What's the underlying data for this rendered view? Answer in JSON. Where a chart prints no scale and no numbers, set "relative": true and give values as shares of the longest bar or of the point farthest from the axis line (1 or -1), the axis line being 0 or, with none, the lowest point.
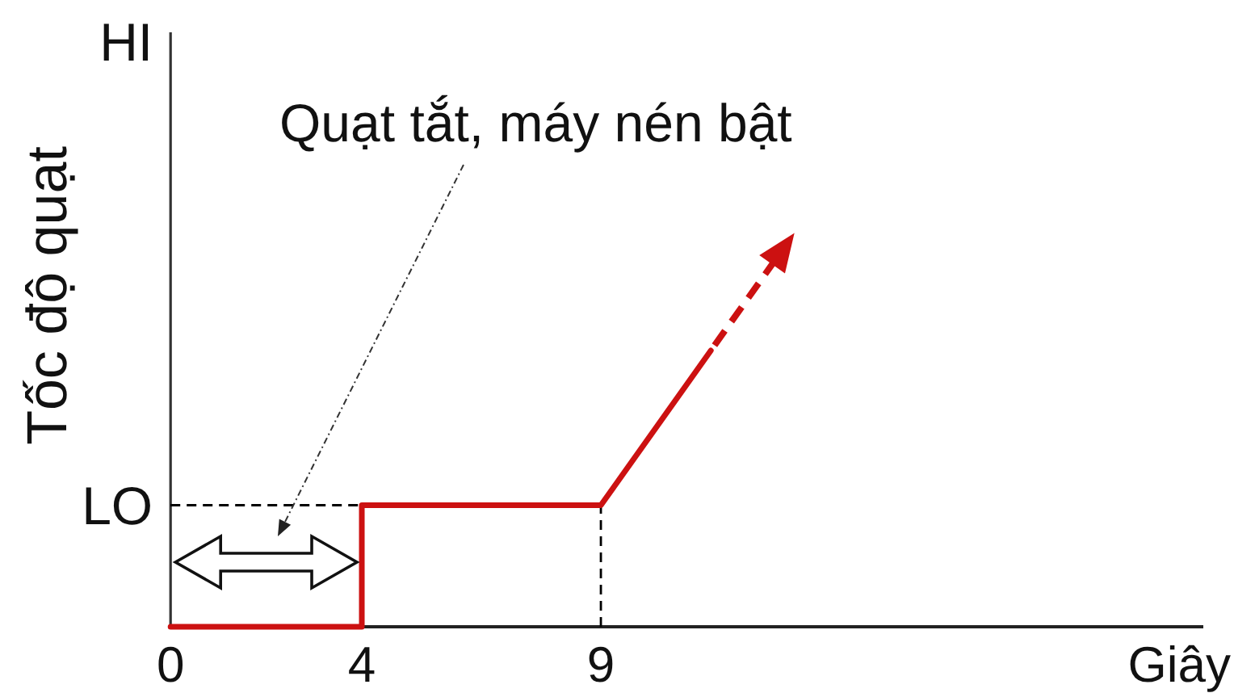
{
  "chart_data": {
    "type": "line",
    "relative": true,
    "xlabel": "Giây",
    "ylabel": "Tốc độ quạt",
    "annotations": [
      "HI",
      {
        "text": "LO",
        "x": 0,
        "y": 0.44
      },
      "Quạt tắt, máy nén bật"
    ],
    "xlim": [
      0,
      21.6
    ],
    "xticks": [
      0,
      4,
      9
    ],
    "series": [
      {
        "color": "#000000",
        "line_style": "dashed",
        "x": [
          0,
          4
        ],
        "values": [
          0.44,
          0.44
        ]
      },
      {
        "color": "#000000",
        "line_style": "dashed",
        "x": [
          9,
          9
        ],
        "values": [
          0,
          0.44
        ]
      },
      {
        "color": "#cc1111",
        "line_style": "solid",
        "x": [
          0,
          4,
          4,
          9,
          11.3
        ],
        "values": [
          0,
          0,
          0.44,
          0.44,
          1
        ]
      }
    ]
  }
}
